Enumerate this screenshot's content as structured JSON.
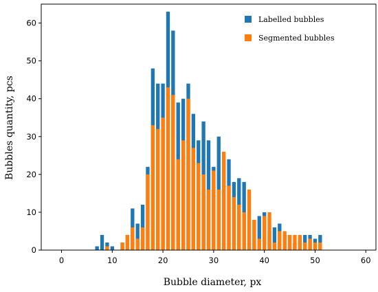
{
  "chart_data": {
    "type": "bar",
    "stacked": "overlay",
    "xlabel": "Bubble diameter, px",
    "ylabel": "Bubbles quantity, pcs",
    "xlim": [
      -4,
      62
    ],
    "ylim": [
      0,
      65
    ],
    "xticks": [
      0,
      10,
      20,
      30,
      40,
      50,
      60
    ],
    "yticks": [
      0,
      10,
      20,
      30,
      40,
      50,
      60
    ],
    "grid": false,
    "legend_position": "top-right",
    "x": [
      7,
      8,
      9,
      10,
      11,
      12,
      13,
      14,
      15,
      16,
      17,
      18,
      19,
      20,
      21,
      22,
      23,
      24,
      25,
      26,
      27,
      28,
      29,
      30,
      31,
      32,
      33,
      34,
      35,
      36,
      37,
      38,
      39,
      40,
      41,
      42,
      43,
      44,
      45,
      46,
      47,
      48,
      49,
      50,
      51,
      52,
      53,
      54,
      55,
      56,
      57,
      58
    ],
    "series": [
      {
        "name": "Labelled bubbles",
        "color": "#1f77b4",
        "values": [
          1,
          4,
          2,
          1,
          0,
          2,
          4,
          11,
          7,
          12,
          22,
          48,
          44,
          44,
          63,
          58,
          39,
          40,
          44,
          36,
          29,
          34,
          29,
          22,
          30,
          24,
          24,
          18,
          19,
          18,
          8,
          8,
          9,
          10,
          5,
          6,
          7,
          4,
          4,
          2,
          3,
          4,
          4,
          3,
          4,
          0,
          0,
          0,
          0,
          0,
          0,
          0
        ]
      },
      {
        "name": "Segmented bubbles",
        "color": "#ff7f0e",
        "values": [
          0,
          0,
          1,
          0,
          0,
          2,
          4,
          6,
          3,
          6,
          20,
          33,
          32,
          35,
          43,
          41,
          24,
          29,
          40,
          27,
          23,
          20,
          16,
          21,
          16,
          26,
          17,
          14,
          12,
          10,
          16,
          8,
          3,
          9,
          10,
          2,
          5,
          5,
          4,
          4,
          4,
          2,
          3,
          2,
          2,
          0,
          0,
          0,
          0,
          0,
          0,
          0
        ]
      }
    ]
  }
}
